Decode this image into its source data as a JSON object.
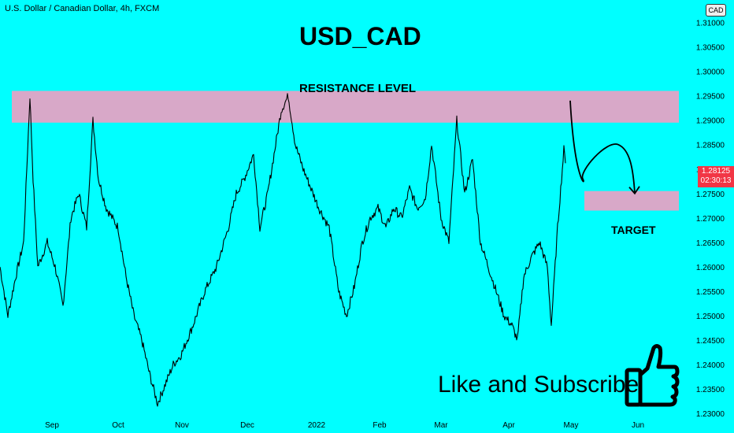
{
  "header": {
    "symbol": "U.S. Dollar / Canadian Dollar, 4h, FXCM",
    "currency": "CAD"
  },
  "price_tag": {
    "price": "1.28125",
    "countdown": "02:30:13"
  },
  "annotations": {
    "title": "USD_CAD",
    "resistance": "RESISTANCE LEVEL",
    "target": "TARGET",
    "cta": "Like and Subscribe"
  },
  "icons": {
    "cta_icon": "thumbs-up-icon"
  },
  "colors": {
    "background": "#00ffff",
    "zone": "#d8a8c8",
    "price_tag": "#f23645",
    "candles": "#000000"
  },
  "chart_data": {
    "type": "line",
    "series": [
      {
        "values": [
          [
            0,
            1.26
          ],
          [
            10,
            1.25
          ],
          [
            20,
            1.258
          ],
          [
            30,
            1.265
          ],
          [
            38,
            1.295
          ],
          [
            42,
            1.278
          ],
          [
            48,
            1.26
          ],
          [
            60,
            1.265
          ],
          [
            70,
            1.26
          ],
          [
            80,
            1.252
          ],
          [
            90,
            1.27
          ],
          [
            100,
            1.275
          ],
          [
            110,
            1.268
          ],
          [
            118,
            1.29
          ],
          [
            125,
            1.278
          ],
          [
            135,
            1.272
          ],
          [
            150,
            1.268
          ],
          [
            160,
            1.258
          ],
          [
            170,
            1.25
          ],
          [
            180,
            1.245
          ],
          [
            190,
            1.238
          ],
          [
            200,
            1.232
          ],
          [
            210,
            1.236
          ],
          [
            220,
            1.24
          ],
          [
            230,
            1.242
          ],
          [
            245,
            1.248
          ],
          [
            260,
            1.255
          ],
          [
            275,
            1.26
          ],
          [
            290,
            1.268
          ],
          [
            300,
            1.275
          ],
          [
            310,
            1.278
          ],
          [
            322,
            1.283
          ],
          [
            330,
            1.268
          ],
          [
            340,
            1.275
          ],
          [
            350,
            1.285
          ],
          [
            357,
            1.292
          ],
          [
            366,
            1.295
          ],
          [
            375,
            1.285
          ],
          [
            385,
            1.28
          ],
          [
            395,
            1.276
          ],
          [
            405,
            1.272
          ],
          [
            418,
            1.268
          ],
          [
            430,
            1.255
          ],
          [
            440,
            1.25
          ],
          [
            450,
            1.256
          ],
          [
            460,
            1.265
          ],
          [
            470,
            1.27
          ],
          [
            480,
            1.272
          ],
          [
            490,
            1.268
          ],
          [
            500,
            1.272
          ],
          [
            510,
            1.27
          ],
          [
            520,
            1.276
          ],
          [
            530,
            1.272
          ],
          [
            540,
            1.274
          ],
          [
            548,
            1.285
          ],
          [
            560,
            1.27
          ],
          [
            570,
            1.265
          ],
          [
            580,
            1.29
          ],
          [
            590,
            1.275
          ],
          [
            600,
            1.282
          ],
          [
            610,
            1.265
          ],
          [
            620,
            1.26
          ],
          [
            630,
            1.255
          ],
          [
            640,
            1.25
          ],
          [
            650,
            1.248
          ],
          [
            657,
            1.245
          ],
          [
            665,
            1.258
          ],
          [
            675,
            1.262
          ],
          [
            685,
            1.265
          ],
          [
            695,
            1.26
          ],
          [
            700,
            1.248
          ],
          [
            708,
            1.268
          ],
          [
            716,
            1.284
          ],
          [
            718,
            1.2812
          ]
        ]
      }
    ],
    "x_ticks": [
      {
        "label": "Sep",
        "x": 66
      },
      {
        "label": "Oct",
        "x": 150
      },
      {
        "label": "Nov",
        "x": 231
      },
      {
        "label": "Dec",
        "x": 314
      },
      {
        "label": "2022",
        "x": 402
      },
      {
        "label": "Feb",
        "x": 482
      },
      {
        "label": "Mar",
        "x": 560
      },
      {
        "label": "Apr",
        "x": 646
      },
      {
        "label": "May",
        "x": 725
      },
      {
        "label": "Jun",
        "x": 810
      }
    ],
    "xlim": [
      0,
      886
    ],
    "y_ticks": [
      "1.31000",
      "1.30500",
      "1.30000",
      "1.29500",
      "1.29000",
      "1.28500",
      "1.28000",
      "1.27500",
      "1.27000",
      "1.26500",
      "1.26000",
      "1.25500",
      "1.25000",
      "1.24500",
      "1.24000",
      "1.23500",
      "1.23000"
    ],
    "ylim": [
      1.2292,
      1.3146
    ],
    "resistance_zone": [
      1.2895,
      1.296
    ],
    "target_zone": [
      1.2715,
      1.2755
    ],
    "target_zone_x": [
      742,
      862
    ],
    "projection": [
      [
        724,
        1.294
      ],
      [
        740,
        1.278
      ],
      [
        760,
        1.2825
      ],
      [
        785,
        1.285
      ],
      [
        800,
        1.278
      ],
      [
        806,
        1.275
      ]
    ]
  }
}
